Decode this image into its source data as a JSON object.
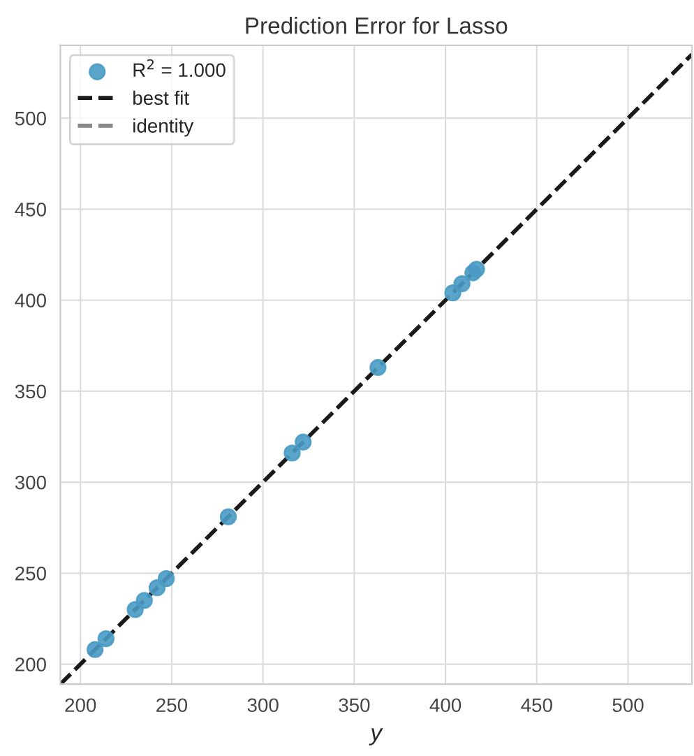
{
  "chart_data": {
    "type": "scatter",
    "title": "Prediction Error for Lasso",
    "xlabel": "y",
    "xlim": [
      189,
      535
    ],
    "ylim": [
      189,
      540
    ],
    "xticks": [
      200,
      250,
      300,
      350,
      400,
      450,
      500
    ],
    "yticks": [
      200,
      250,
      300,
      350,
      400,
      450,
      500
    ],
    "grid": true,
    "legend": "top left",
    "series": [
      {
        "name": "R$^{2}$ = 1.000",
        "color": "#4a9bc4",
        "marker": "circle",
        "x": [
          208,
          214,
          230,
          235,
          242,
          247,
          281,
          316,
          322,
          363,
          404,
          409,
          415,
          417
        ],
        "values": [
          208,
          214,
          230,
          235,
          242,
          247,
          281,
          316,
          322,
          363,
          404,
          409,
          415,
          417
        ]
      },
      {
        "name": "identity",
        "type": "line",
        "color": "#888888",
        "line_style": "dashed",
        "x": [
          189,
          535
        ],
        "values": [
          189,
          535
        ]
      },
      {
        "name": "best fit",
        "type": "line",
        "color": "#1a1a1a",
        "line_style": "dashed",
        "x": [
          189,
          535
        ],
        "values": [
          189,
          535
        ]
      }
    ]
  }
}
